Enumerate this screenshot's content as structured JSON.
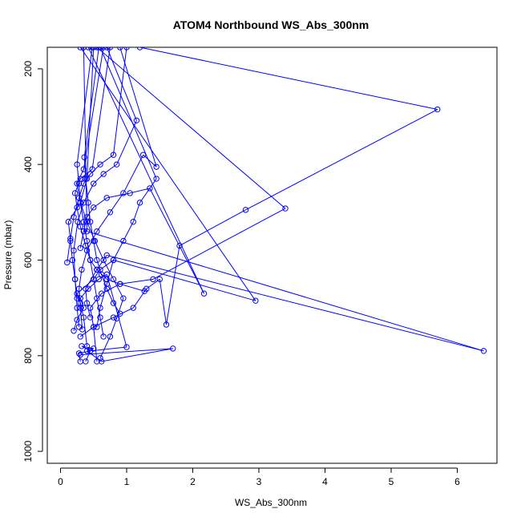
{
  "chart_data": {
    "type": "line",
    "title": "ATOM4 Northbound WS_Abs_300nm",
    "xlabel": "WS_Abs_300nm",
    "ylabel": "Pressure (mbar)",
    "xlim": [
      -0.2,
      6.6
    ],
    "ylim": [
      1025,
      155
    ],
    "y_axis_inverted": true,
    "grid": false,
    "line_color": "#0000ff",
    "marker": "open-circle",
    "x_ticks": [
      0,
      1,
      2,
      3,
      4,
      5,
      6
    ],
    "y_ticks": [
      200,
      400,
      600,
      800,
      1000
    ],
    "series": [
      {
        "x": [
          0.3,
          0.28,
          0.45,
          0.32,
          0.5,
          0.4,
          0.62,
          1.7,
          0.3
        ],
        "y": [
          812,
          795,
          790,
          780,
          785,
          790,
          812,
          785,
          798
        ]
      },
      {
        "x": [
          0.2,
          0.25,
          0.35,
          0.3,
          0.42,
          0.58,
          0.7,
          1.0,
          0.45,
          0.38
        ],
        "y": [
          748,
          725,
          700,
          680,
          660,
          640,
          630,
          782,
          790,
          812
        ]
      },
      {
        "x": [
          0.3,
          0.5,
          0.8,
          1.1,
          1.3,
          1.5,
          1.6,
          1.8,
          2.8,
          5.7,
          1.2
        ],
        "y": [
          760,
          740,
          720,
          700,
          660,
          640,
          735,
          570,
          495,
          285,
          155
        ]
      },
      {
        "x": [
          0.55,
          0.5,
          0.45,
          0.62,
          0.9,
          1.4,
          3.4,
          0.55
        ],
        "y": [
          812,
          740,
          700,
          670,
          650,
          640,
          492,
          155
        ]
      },
      {
        "x": [
          0.4,
          0.35,
          0.3,
          0.25,
          0.5,
          0.6,
          0.8,
          2.95,
          0.3
        ],
        "y": [
          780,
          720,
          690,
          670,
          640,
          620,
          600,
          685,
          155
        ]
      },
      {
        "x": [
          0.45,
          0.4,
          0.38,
          0.55,
          0.7,
          6.4,
          0.4,
          0.35
        ],
        "y": [
          720,
          690,
          660,
          620,
          590,
          790,
          540,
          155
        ]
      },
      {
        "x": [
          0.25,
          0.22,
          0.18,
          0.15,
          0.12,
          0.3,
          0.4,
          0.5
        ],
        "y": [
          680,
          640,
          600,
          560,
          520,
          480,
          430,
          155
        ]
      },
      {
        "x": [
          0.1,
          0.15,
          0.2,
          0.28,
          0.35,
          0.45,
          0.6,
          0.8,
          1.0
        ],
        "y": [
          605,
          555,
          510,
          470,
          440,
          420,
          400,
          380,
          155
        ]
      },
      {
        "x": [
          0.3,
          0.35,
          0.4,
          0.5,
          0.7,
          1.05,
          1.35,
          2.17,
          0.42
        ],
        "y": [
          575,
          540,
          510,
          490,
          470,
          460,
          450,
          670,
          155
        ]
      },
      {
        "x": [
          0.55,
          0.6,
          0.7,
          0.8,
          0.95,
          1.1,
          1.2,
          1.45,
          0.6
        ],
        "y": [
          740,
          700,
          650,
          600,
          560,
          520,
          480,
          430,
          155
        ]
      },
      {
        "x": [
          0.33,
          0.3,
          0.28,
          0.32,
          0.4,
          0.55,
          0.75,
          0.95,
          1.25,
          1.45,
          0.9
        ],
        "y": [
          745,
          700,
          660,
          620,
          580,
          540,
          500,
          460,
          380,
          405,
          155
        ]
      },
      {
        "x": [
          0.28,
          0.25,
          0.22,
          0.2,
          0.26,
          0.35,
          0.5,
          0.65,
          0.85,
          1.15,
          0.7
        ],
        "y": [
          740,
          700,
          640,
          580,
          520,
          480,
          440,
          420,
          400,
          308,
          155
        ]
      },
      {
        "x": [
          0.65,
          0.6,
          0.55,
          0.5,
          0.45,
          0.4,
          0.35,
          0.3,
          0.28,
          0.25,
          0.48
        ],
        "y": [
          760,
          720,
          680,
          640,
          600,
          560,
          520,
          480,
          440,
          400,
          155
        ]
      },
      {
        "x": [
          0.9,
          0.8,
          0.7,
          0.62,
          0.55,
          0.5,
          0.45,
          0.42,
          0.38,
          0.36,
          0.58
        ],
        "y": [
          712,
          690,
          660,
          630,
          600,
          560,
          520,
          480,
          430,
          385,
          155
        ]
      },
      {
        "x": [
          0.6,
          0.75,
          0.85,
          0.95,
          0.8,
          0.65,
          0.52,
          0.4,
          0.3,
          0.25,
          0.35,
          0.65
        ],
        "y": [
          805,
          760,
          722,
          680,
          640,
          600,
          560,
          520,
          480,
          440,
          410,
          155
        ]
      },
      {
        "x": [
          1.27,
          0.9,
          0.7,
          0.55,
          0.45,
          0.38,
          0.3,
          0.25,
          0.22,
          0.3,
          0.48,
          0.75
        ],
        "y": [
          665,
          650,
          640,
          620,
          600,
          570,
          530,
          490,
          460,
          430,
          410,
          155
        ]
      }
    ]
  }
}
